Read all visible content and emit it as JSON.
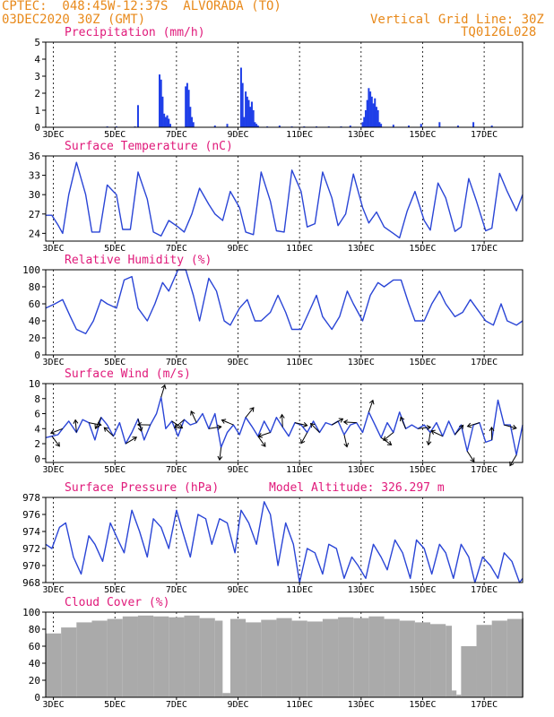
{
  "header": {
    "left_line1": "CPTEC:  048:45W-12:37S  ALVORADA (TO)",
    "left_line2": "03DEC2020 30Z (GMT)",
    "right_line1": "Vertical Grid Line: 30Z",
    "right_line2": "TQ0126L028"
  },
  "colors": {
    "header": "#e8891a",
    "title": "#e0197a",
    "series": "#2a45d6",
    "precip": "#1f3fe8",
    "cloud": "#aaaaaa",
    "wind_arrow": "#000000"
  },
  "x_ticks": [
    "3DEC",
    "5DEC",
    "7DEC",
    "9DEC",
    "11DEC",
    "13DEC",
    "15DEC",
    "17DEC"
  ],
  "chart_data": [
    {
      "type": "bar",
      "title": "Precipitation (mm/h)",
      "ylim": [
        0,
        5
      ],
      "yticks": [
        "0",
        "1",
        "2",
        "3",
        "4",
        "5"
      ],
      "x_range_days": [
        3.0,
        18.5
      ],
      "x": [
        5.0,
        5.3,
        5.9,
        6.0,
        6.7,
        6.75,
        6.8,
        6.85,
        6.9,
        6.95,
        7.0,
        7.05,
        7.55,
        7.6,
        7.65,
        7.7,
        7.75,
        7.8,
        8.5,
        8.9,
        9.35,
        9.4,
        9.45,
        9.5,
        9.55,
        9.6,
        9.65,
        9.7,
        9.75,
        9.8,
        9.85,
        9.9,
        10.2,
        10.6,
        11.0,
        11.4,
        11.8,
        12.2,
        12.6,
        12.9,
        13.3,
        13.35,
        13.4,
        13.45,
        13.5,
        13.55,
        13.6,
        13.65,
        13.7,
        13.75,
        13.8,
        13.85,
        13.9,
        14.3,
        14.8,
        15.2,
        15.8,
        16.4,
        16.9,
        17.5
      ],
      "values": [
        0.05,
        0.05,
        0.05,
        1.3,
        3.1,
        2.8,
        1.8,
        0.8,
        0.6,
        0.7,
        0.5,
        0.2,
        2.4,
        2.6,
        2.2,
        1.2,
        0.6,
        0.3,
        0.1,
        0.2,
        3.5,
        2.6,
        0.6,
        2.1,
        1.8,
        1.6,
        1.2,
        1.5,
        1.0,
        0.3,
        0.2,
        0.1,
        0.05,
        0.1,
        0.05,
        0.05,
        0.05,
        0.05,
        0.05,
        0.1,
        0.3,
        0.6,
        1.0,
        1.6,
        2.3,
        2.1,
        1.8,
        1.4,
        1.7,
        1.2,
        1.0,
        0.3,
        0.2,
        0.15,
        0.1,
        0.2,
        0.3,
        0.1,
        0.3,
        0.1
      ]
    },
    {
      "type": "line",
      "title": "Surface Temperature (nC)",
      "ylim": [
        22.8,
        36
      ],
      "yticks": [
        "24",
        "27",
        "30",
        "33",
        "36"
      ],
      "x_range_days": [
        3.0,
        18.5
      ],
      "x": [
        3.0,
        3.2,
        3.4,
        3.55,
        3.75,
        4.0,
        4.3,
        4.5,
        4.75,
        5.0,
        5.3,
        5.5,
        5.75,
        6.0,
        6.3,
        6.5,
        6.75,
        7.0,
        7.3,
        7.5,
        7.75,
        8.0,
        8.3,
        8.5,
        8.75,
        9.0,
        9.3,
        9.5,
        9.75,
        10.0,
        10.3,
        10.5,
        10.75,
        11.0,
        11.3,
        11.5,
        11.75,
        12.0,
        12.3,
        12.5,
        12.75,
        13.0,
        13.3,
        13.5,
        13.75,
        14.0,
        14.3,
        14.5,
        14.75,
        15.0,
        15.3,
        15.5,
        15.75,
        16.0,
        16.3,
        16.5,
        16.75,
        17.0,
        17.3,
        17.5,
        17.75,
        18.0,
        18.3,
        18.5
      ],
      "values": [
        26.8,
        26.8,
        25.3,
        24.0,
        30.0,
        35.0,
        30.0,
        24.2,
        24.2,
        31.5,
        30.0,
        24.6,
        24.6,
        33.5,
        29.3,
        24.2,
        23.6,
        26.0,
        25.0,
        24.2,
        27.0,
        31.0,
        28.5,
        27.0,
        26.0,
        30.5,
        28.0,
        24.2,
        23.8,
        33.5,
        29.0,
        24.4,
        24.2,
        33.8,
        30.5,
        25.0,
        25.5,
        33.5,
        29.5,
        25.2,
        27.0,
        33.2,
        28.0,
        25.6,
        27.3,
        25.0,
        24.0,
        23.3,
        27.5,
        30.5,
        26.0,
        24.5,
        31.8,
        29.5,
        24.3,
        25.0,
        32.5,
        29.0,
        24.4,
        24.8,
        33.3,
        30.5,
        27.5,
        30.0
      ]
    },
    {
      "type": "line",
      "title": "Relative Humidity (%)",
      "ylim": [
        0,
        100
      ],
      "yticks": [
        "0",
        "20",
        "40",
        "60",
        "80",
        "100"
      ],
      "x_range_days": [
        3.0,
        18.5
      ],
      "x": [
        3.0,
        3.3,
        3.55,
        3.8,
        4.0,
        4.3,
        4.55,
        4.8,
        5.0,
        5.3,
        5.55,
        5.8,
        6.0,
        6.3,
        6.55,
        6.8,
        7.0,
        7.3,
        7.55,
        7.8,
        8.0,
        8.3,
        8.55,
        8.8,
        9.0,
        9.3,
        9.55,
        9.8,
        10.0,
        10.3,
        10.55,
        10.8,
        11.0,
        11.3,
        11.55,
        11.8,
        12.0,
        12.3,
        12.55,
        12.8,
        13.0,
        13.3,
        13.55,
        13.8,
        14.0,
        14.3,
        14.55,
        14.8,
        15.0,
        15.3,
        15.55,
        15.8,
        16.0,
        16.3,
        16.55,
        16.8,
        17.0,
        17.3,
        17.55,
        17.8,
        18.0,
        18.3,
        18.5
      ],
      "values": [
        55,
        60,
        65,
        45,
        30,
        25,
        40,
        65,
        60,
        55,
        88,
        92,
        55,
        40,
        60,
        85,
        75,
        100,
        100,
        70,
        40,
        90,
        75,
        40,
        35,
        55,
        65,
        40,
        40,
        50,
        70,
        50,
        30,
        30,
        50,
        70,
        45,
        30,
        45,
        75,
        60,
        40,
        70,
        85,
        80,
        88,
        88,
        60,
        40,
        40,
        60,
        75,
        60,
        45,
        50,
        65,
        55,
        40,
        35,
        60,
        40,
        35,
        40
      ]
    },
    {
      "type": "line",
      "title": "Surface Wind (m/s)",
      "ylim": [
        -0.5,
        10
      ],
      "yticks": [
        "0",
        "2",
        "4",
        "6",
        "8",
        "10"
      ],
      "x_range_days": [
        3.0,
        18.5
      ],
      "x": [
        3.0,
        3.2,
        3.4,
        3.55,
        3.75,
        4.0,
        4.2,
        4.4,
        4.6,
        4.8,
        5.0,
        5.2,
        5.4,
        5.6,
        5.8,
        6.0,
        6.2,
        6.4,
        6.6,
        6.75,
        6.9,
        7.1,
        7.3,
        7.5,
        7.7,
        7.9,
        8.1,
        8.3,
        8.5,
        8.7,
        8.9,
        9.1,
        9.3,
        9.5,
        9.7,
        9.9,
        10.1,
        10.3,
        10.5,
        10.7,
        10.9,
        11.1,
        11.3,
        11.5,
        11.7,
        11.9,
        12.1,
        12.3,
        12.5,
        12.7,
        12.9,
        13.1,
        13.3,
        13.5,
        13.7,
        13.9,
        14.1,
        14.3,
        14.5,
        14.7,
        14.9,
        15.1,
        15.3,
        15.5,
        15.7,
        15.9,
        16.1,
        16.3,
        16.5,
        16.7,
        16.9,
        17.1,
        17.3,
        17.5,
        17.7,
        17.9,
        18.1,
        18.3,
        18.5
      ],
      "values": [
        2.8,
        3.0,
        3.2,
        4.0,
        5.0,
        3.5,
        5.2,
        4.8,
        2.5,
        5.5,
        4.5,
        3.0,
        4.8,
        2.0,
        3.5,
        5.3,
        2.5,
        4.5,
        6.0,
        8.2,
        4.0,
        5.0,
        3.0,
        5.2,
        4.5,
        4.8,
        6.0,
        4.0,
        6.0,
        1.5,
        3.5,
        4.5,
        3.2,
        5.5,
        4.3,
        3.0,
        5.0,
        3.5,
        5.5,
        4.2,
        3.0,
        4.8,
        4.5,
        3.5,
        5.0,
        3.5,
        4.8,
        4.5,
        5.0,
        3.2,
        4.5,
        4.8,
        3.5,
        6.2,
        4.5,
        2.8,
        4.8,
        3.5,
        6.2,
        4.0,
        4.5,
        4.0,
        4.5,
        3.5,
        4.8,
        3.0,
        5.0,
        3.2,
        4.5,
        1.0,
        4.5,
        4.8,
        2.2,
        2.5,
        7.8,
        4.5,
        4.5,
        0.5,
        4.5
      ]
    },
    {
      "type": "line",
      "title": "Surface Pressure (hPa)",
      "annotation": "Model Altitude: 326.297 m",
      "ylim": [
        968,
        978
      ],
      "yticks": [
        "968",
        "970",
        "972",
        "974",
        "976",
        "978"
      ],
      "x_range_days": [
        3.0,
        18.5
      ],
      "x": [
        3.0,
        3.2,
        3.45,
        3.65,
        3.9,
        4.15,
        4.4,
        4.6,
        4.85,
        5.1,
        5.35,
        5.55,
        5.8,
        6.05,
        6.3,
        6.5,
        6.75,
        7.0,
        7.25,
        7.45,
        7.7,
        7.95,
        8.2,
        8.4,
        8.65,
        8.9,
        9.15,
        9.35,
        9.6,
        9.85,
        10.1,
        10.3,
        10.55,
        10.8,
        11.05,
        11.25,
        11.5,
        11.75,
        12.0,
        12.2,
        12.45,
        12.7,
        12.95,
        13.15,
        13.4,
        13.65,
        13.9,
        14.1,
        14.35,
        14.6,
        14.85,
        15.05,
        15.3,
        15.55,
        15.8,
        16.0,
        16.25,
        16.5,
        16.75,
        16.95,
        17.2,
        17.45,
        17.7,
        17.9,
        18.15,
        18.4,
        18.5
      ],
      "values": [
        972.5,
        972.0,
        974.5,
        975.0,
        971.0,
        969.0,
        973.5,
        972.5,
        970.5,
        975.0,
        973.0,
        971.5,
        976.5,
        974.0,
        971.0,
        975.5,
        974.5,
        972.0,
        976.5,
        974.0,
        971.0,
        976.0,
        975.5,
        972.5,
        975.5,
        975.0,
        971.5,
        976.5,
        975.0,
        972.5,
        977.5,
        976.0,
        970.0,
        975.0,
        972.5,
        968.0,
        972.0,
        971.5,
        969.0,
        972.5,
        972.0,
        968.5,
        971.0,
        970.0,
        968.5,
        972.5,
        971.0,
        969.5,
        973.0,
        971.5,
        968.5,
        973.0,
        972.0,
        969.0,
        972.5,
        971.5,
        968.5,
        972.5,
        971.0,
        968.0,
        971.0,
        970.0,
        968.5,
        971.5,
        970.5,
        968.0,
        968.5
      ]
    },
    {
      "type": "bar",
      "title": "Cloud Cover (%)",
      "ylim": [
        0,
        100
      ],
      "yticks": [
        "0",
        "20",
        "40",
        "60",
        "80",
        "100"
      ],
      "x_range_days": [
        3.0,
        18.5
      ],
      "x": [
        3.0,
        3.5,
        4.0,
        4.5,
        5.0,
        5.5,
        6.0,
        6.5,
        7.0,
        7.5,
        8.0,
        8.5,
        8.75,
        9.0,
        9.5,
        10.0,
        10.5,
        11.0,
        11.5,
        12.0,
        12.5,
        13.0,
        13.5,
        14.0,
        14.5,
        15.0,
        15.5,
        16.0,
        16.2,
        16.35,
        16.5,
        17.0,
        17.5,
        18.0,
        18.5
      ],
      "values": [
        75,
        82,
        88,
        90,
        92,
        95,
        96,
        95,
        94,
        96,
        93,
        90,
        5,
        92,
        88,
        91,
        93,
        90,
        89,
        92,
        94,
        93,
        95,
        92,
        90,
        88,
        86,
        84,
        8,
        3,
        60,
        85,
        90,
        92,
        93
      ]
    }
  ]
}
